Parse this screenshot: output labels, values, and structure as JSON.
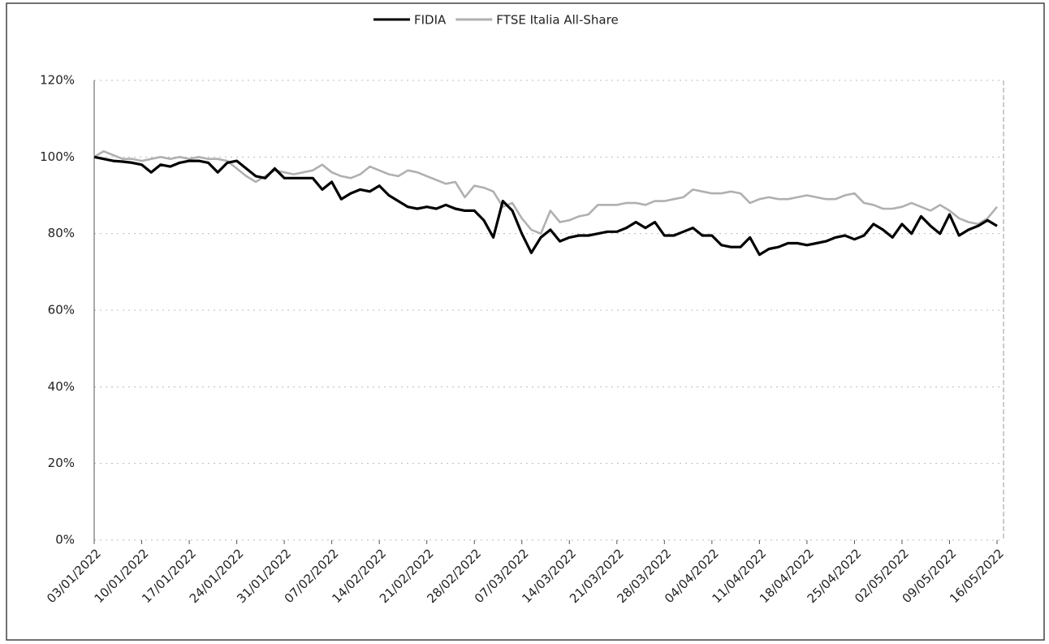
{
  "chart_data": {
    "type": "line",
    "categories": [
      "03/01/2022",
      null,
      null,
      null,
      null,
      "10/01/2022",
      null,
      null,
      null,
      null,
      "17/01/2022",
      null,
      null,
      null,
      null,
      "24/01/2022",
      null,
      null,
      null,
      null,
      "31/01/2022",
      null,
      null,
      null,
      null,
      "07/02/2022",
      null,
      null,
      null,
      null,
      "14/02/2022",
      null,
      null,
      null,
      null,
      "21/02/2022",
      null,
      null,
      null,
      null,
      "28/02/2022",
      null,
      null,
      null,
      null,
      "07/03/2022",
      null,
      null,
      null,
      null,
      "14/03/2022",
      null,
      null,
      null,
      null,
      "21/03/2022",
      null,
      null,
      null,
      null,
      "28/03/2022",
      null,
      null,
      null,
      null,
      "04/04/2022",
      null,
      null,
      null,
      null,
      "11/04/2022",
      null,
      null,
      null,
      null,
      "18/04/2022",
      null,
      null,
      null,
      null,
      "25/04/2022",
      null,
      null,
      null,
      null,
      "02/05/2022",
      null,
      null,
      null,
      null,
      "09/05/2022",
      null,
      null,
      null,
      null,
      "16/05/2022"
    ],
    "series": [
      {
        "name": "FIDIA",
        "color": "#000000",
        "values": [
          100,
          99.5,
          99,
          98.8,
          98.5,
          98,
          96,
          98,
          97.5,
          98.5,
          99,
          99,
          98.5,
          96,
          98.5,
          99,
          97,
          95,
          94.5,
          97,
          94.5,
          94.5,
          94.5,
          94.5,
          91.5,
          93.5,
          89,
          90.5,
          91.5,
          91,
          92.5,
          90,
          88.5,
          87,
          86.5,
          87,
          86.5,
          87.5,
          86.5,
          86,
          86,
          83.5,
          79,
          88.5,
          86,
          80,
          75,
          79,
          81,
          78,
          79,
          79.5,
          79.5,
          80,
          80.5,
          80.5,
          81.5,
          83,
          81.5,
          83,
          79.5,
          79.5,
          80.5,
          81.5,
          79.5,
          79.5,
          77,
          76.5,
          76.5,
          79,
          74.5,
          76,
          76.5,
          77.5,
          77.5,
          77,
          77.5,
          78,
          79,
          79.5,
          78.5,
          79.5,
          82.5,
          81,
          79,
          82.5,
          80,
          84.5,
          82,
          80,
          85,
          79.5,
          81,
          82,
          83.5,
          82
        ]
      },
      {
        "name": "FTSE Italia All-Share",
        "color": "#b0b0b0",
        "values": [
          100,
          101.5,
          100.5,
          99.5,
          99.5,
          99,
          99.5,
          100,
          99.5,
          100,
          99.5,
          100,
          99.5,
          99.5,
          99,
          97,
          95,
          93.5,
          95,
          96.5,
          96,
          95.5,
          96,
          96.5,
          98,
          96,
          95,
          94.5,
          95.5,
          97.5,
          96.5,
          95.5,
          95,
          96.5,
          96,
          95,
          94,
          93,
          93.5,
          89.5,
          92.5,
          92,
          91,
          87,
          88,
          84,
          81,
          80,
          86,
          83,
          83.5,
          84.5,
          85,
          87.5,
          87.5,
          87.5,
          88,
          88,
          87.5,
          88.5,
          88.5,
          89,
          89.5,
          91.5,
          91,
          90.5,
          90.5,
          91,
          90.5,
          88,
          89,
          89.5,
          89,
          89,
          89.5,
          90,
          89.5,
          89,
          89,
          90,
          90.5,
          88,
          87.5,
          86.5,
          86.5,
          87,
          88,
          87,
          86,
          87.5,
          86,
          84,
          83,
          82.5,
          84,
          87
        ]
      }
    ],
    "ylim": [
      0,
      120
    ],
    "yticks": [
      {
        "value": 0,
        "label": "0%"
      },
      {
        "value": 20,
        "label": "20%"
      },
      {
        "value": 40,
        "label": "40%"
      },
      {
        "value": 60,
        "label": "60%"
      },
      {
        "value": 80,
        "label": "80%"
      },
      {
        "value": 100,
        "label": "100%"
      },
      {
        "value": 120,
        "label": "120%"
      }
    ],
    "grid": true,
    "legend": "top"
  }
}
